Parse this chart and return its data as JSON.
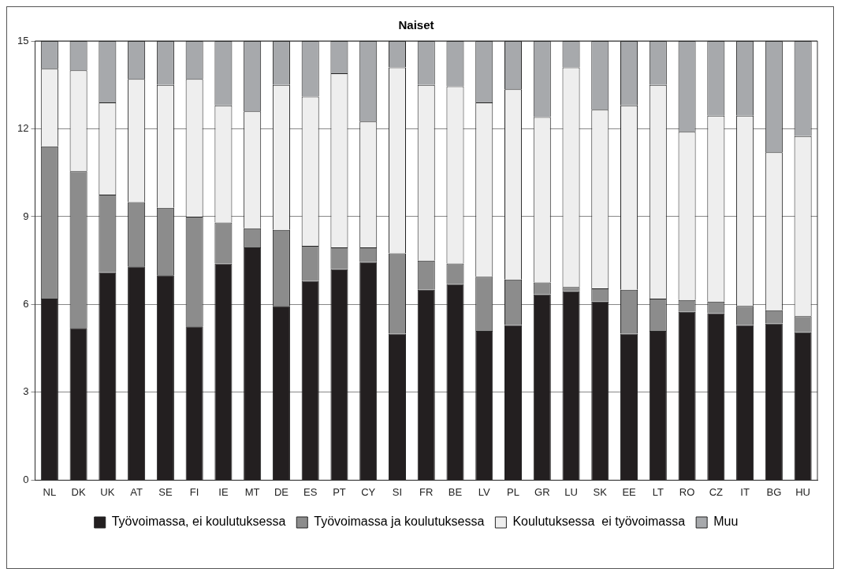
{
  "chart_data": {
    "type": "bar",
    "title": "Naiset",
    "stacked": true,
    "categories": [
      "NL",
      "DK",
      "UK",
      "AT",
      "SE",
      "FI",
      "IE",
      "MT",
      "DE",
      "ES",
      "PT",
      "CY",
      "SI",
      "FR",
      "BE",
      "LV",
      "PL",
      "GR",
      "LU",
      "SK",
      "EE",
      "LT",
      "RO",
      "CZ",
      "IT",
      "BG",
      "HU"
    ],
    "series": [
      {
        "name": "Työvoimassa, ei koulutuksessa",
        "color": "#231f20",
        "values": [
          6.2,
          5.2,
          7.1,
          7.3,
          7.0,
          5.25,
          7.4,
          7.95,
          5.95,
          6.8,
          7.2,
          7.45,
          5.0,
          6.5,
          6.7,
          5.1,
          5.3,
          6.35,
          6.45,
          6.1,
          5.0,
          5.1,
          5.75,
          5.7,
          5.3,
          5.35,
          5.05
        ]
      },
      {
        "name": "Työvoimassa ja koulutuksessa",
        "color": "#8c8c8c",
        "values": [
          5.2,
          5.35,
          2.65,
          2.2,
          2.3,
          3.75,
          1.4,
          0.65,
          2.6,
          1.2,
          0.75,
          0.5,
          2.75,
          1.0,
          0.7,
          1.85,
          1.55,
          0.4,
          0.15,
          0.45,
          1.5,
          1.1,
          0.4,
          0.4,
          0.65,
          0.45,
          0.55
        ]
      },
      {
        "name": "Koulutuksessa  ei työvoimassa",
        "color": "#eeeeee",
        "values": [
          2.65,
          3.45,
          3.15,
          4.2,
          4.2,
          4.7,
          4.0,
          4.0,
          4.95,
          5.1,
          5.95,
          4.3,
          6.35,
          6.0,
          6.05,
          5.95,
          6.5,
          5.65,
          7.5,
          6.1,
          6.3,
          7.3,
          5.75,
          6.35,
          6.5,
          5.4,
          6.15
        ]
      },
      {
        "name": "Muu",
        "color": "#a7a9ac",
        "values": [
          0.95,
          1.0,
          2.1,
          1.3,
          1.5,
          1.3,
          2.2,
          2.4,
          1.5,
          1.9,
          1.1,
          2.75,
          0.9,
          1.5,
          1.55,
          2.1,
          1.65,
          2.6,
          0.9,
          2.35,
          2.2,
          1.5,
          3.1,
          2.55,
          2.55,
          3.8,
          3.25
        ]
      }
    ],
    "ylim": [
      0,
      15
    ],
    "yticks": [
      0,
      3,
      6,
      9,
      12,
      15
    ],
    "grid": "y",
    "legend": "bottom"
  }
}
